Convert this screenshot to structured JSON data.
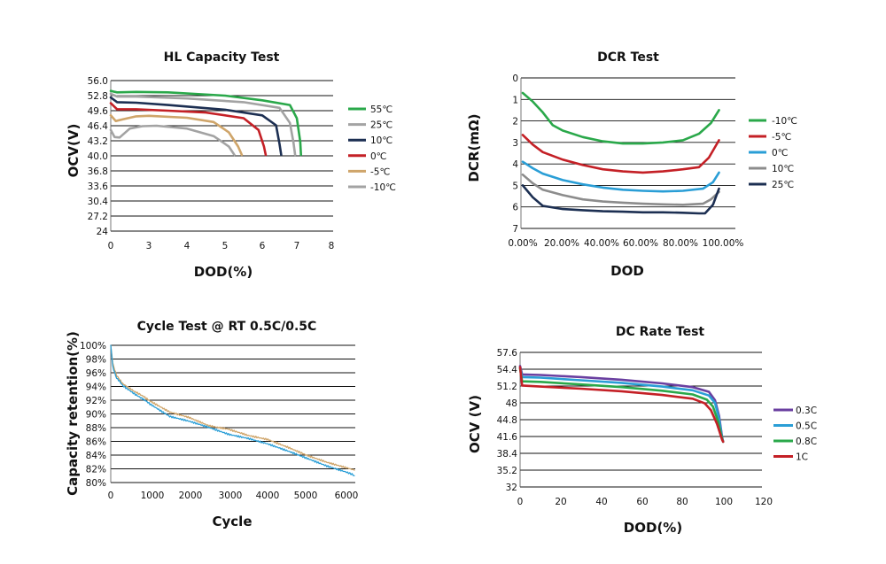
{
  "chart_data": [
    {
      "id": "hl",
      "type": "line",
      "title": "HL Capacity Test",
      "xlabel": "DOD(%)",
      "ylabel": "OCV(V)",
      "xticks": [
        "0",
        "3",
        "4",
        "5",
        "6",
        "7",
        "8"
      ],
      "yticks": [
        "56.0",
        "52.8",
        "49.6",
        "46.4",
        "43.2",
        "40.0",
        "36.8",
        "33.6",
        "30.4",
        "27.2",
        "24"
      ],
      "legend_position": "right",
      "grid": "horizontal",
      "series": [
        {
          "name": "55℃",
          "color": "#2aa84a",
          "points": [
            [
              0,
              53.8
            ],
            [
              0.5,
              53.5
            ],
            [
              2,
              53.6
            ],
            [
              3.5,
              53.5
            ],
            [
              5,
              52.8
            ],
            [
              6,
              51.8
            ],
            [
              6.8,
              50.8
            ],
            [
              7.0,
              48.0
            ],
            [
              7.1,
              43.0
            ],
            [
              7.12,
              40.2
            ]
          ]
        },
        {
          "name": "25℃",
          "color": "#a3a3a3",
          "points": [
            [
              0,
              53.2
            ],
            [
              0.5,
              52.6
            ],
            [
              2,
              52.6
            ],
            [
              4,
              52.2
            ],
            [
              5.5,
              51.4
            ],
            [
              6.5,
              50.2
            ],
            [
              6.8,
              47.0
            ],
            [
              6.9,
              43.0
            ],
            [
              6.95,
              40.2
            ]
          ]
        },
        {
          "name": "10℃",
          "color": "#1c2f52",
          "points": [
            [
              0,
              52.4
            ],
            [
              0.5,
              51.4
            ],
            [
              2,
              51.3
            ],
            [
              3.5,
              50.8
            ],
            [
              5,
              49.8
            ],
            [
              6,
              48.6
            ],
            [
              6.4,
              46.5
            ],
            [
              6.5,
              42.5
            ],
            [
              6.55,
              40.2
            ]
          ]
        },
        {
          "name": "0℃",
          "color": "#c42026",
          "points": [
            [
              0,
              51.2
            ],
            [
              0.5,
              49.9
            ],
            [
              2,
              49.9
            ],
            [
              3.5,
              49.6
            ],
            [
              4.5,
              49.2
            ],
            [
              5.5,
              48.0
            ],
            [
              5.9,
              45.5
            ],
            [
              6.05,
              42.0
            ],
            [
              6.1,
              40.2
            ]
          ]
        },
        {
          "name": "-5℃",
          "color": "#cfa56a",
          "points": [
            [
              0,
              48.6
            ],
            [
              0.4,
              47.4
            ],
            [
              1,
              47.8
            ],
            [
              2,
              48.4
            ],
            [
              3,
              48.5
            ],
            [
              4,
              48.1
            ],
            [
              4.7,
              47.2
            ],
            [
              5.1,
              45.0
            ],
            [
              5.35,
              42.0
            ],
            [
              5.45,
              40.2
            ]
          ]
        },
        {
          "name": "-10℃",
          "color": "#a3a3a3",
          "points": [
            [
              0,
              45.5
            ],
            [
              0.3,
              44.0
            ],
            [
              0.7,
              43.9
            ],
            [
              1.5,
              45.8
            ],
            [
              2.5,
              46.3
            ],
            [
              3.2,
              46.4
            ],
            [
              4.0,
              45.8
            ],
            [
              4.7,
              44.2
            ],
            [
              5.1,
              42.0
            ],
            [
              5.25,
              40.2
            ]
          ]
        }
      ]
    },
    {
      "id": "dcr",
      "type": "line",
      "title": "DCR Test",
      "xlabel": "DOD",
      "ylabel": "DCR(mΩ)",
      "xticks": [
        "0.00%",
        "20.00%",
        "40.00%",
        "60.00%",
        "80.00%",
        "100.00%"
      ],
      "yticks": [
        "0",
        "1",
        "2",
        "3",
        "4",
        "5",
        "6",
        "7"
      ],
      "xlim": [
        0,
        100
      ],
      "ylim": [
        0,
        7
      ],
      "legend_position": "right",
      "grid": "horizontal",
      "series": [
        {
          "name": "-10℃",
          "color": "#2aa84a",
          "points": [
            [
              0,
              6.3
            ],
            [
              5,
              5.9
            ],
            [
              10,
              5.4
            ],
            [
              15,
              4.8
            ],
            [
              20,
              4.55
            ],
            [
              30,
              4.25
            ],
            [
              40,
              4.05
            ],
            [
              50,
              3.95
            ],
            [
              60,
              3.95
            ],
            [
              70,
              4.0
            ],
            [
              80,
              4.1
            ],
            [
              88,
              4.4
            ],
            [
              94,
              4.9
            ],
            [
              98,
              5.5
            ]
          ]
        },
        {
          "name": "-5℃",
          "color": "#c42026",
          "points": [
            [
              0,
              4.35
            ],
            [
              5,
              3.9
            ],
            [
              10,
              3.55
            ],
            [
              20,
              3.2
            ],
            [
              30,
              2.95
            ],
            [
              40,
              2.75
            ],
            [
              50,
              2.65
            ],
            [
              60,
              2.6
            ],
            [
              70,
              2.65
            ],
            [
              80,
              2.75
            ],
            [
              88,
              2.85
            ],
            [
              93,
              3.3
            ],
            [
              98,
              4.1
            ]
          ]
        },
        {
          "name": "0℃",
          "color": "#2a9ed6",
          "points": [
            [
              0,
              3.1
            ],
            [
              5,
              2.8
            ],
            [
              10,
              2.55
            ],
            [
              20,
              2.25
            ],
            [
              30,
              2.05
            ],
            [
              40,
              1.9
            ],
            [
              50,
              1.8
            ],
            [
              60,
              1.75
            ],
            [
              70,
              1.72
            ],
            [
              80,
              1.75
            ],
            [
              90,
              1.85
            ],
            [
              95,
              2.15
            ],
            [
              98,
              2.6
            ]
          ]
        },
        {
          "name": "10℃",
          "color": "#8c8c8c",
          "points": [
            [
              0,
              2.5
            ],
            [
              5,
              2.1
            ],
            [
              10,
              1.8
            ],
            [
              20,
              1.55
            ],
            [
              30,
              1.35
            ],
            [
              40,
              1.25
            ],
            [
              50,
              1.2
            ],
            [
              60,
              1.15
            ],
            [
              70,
              1.12
            ],
            [
              80,
              1.1
            ],
            [
              90,
              1.15
            ],
            [
              94,
              1.35
            ],
            [
              98,
              1.7
            ]
          ]
        },
        {
          "name": "25℃",
          "color": "#1c2f52",
          "points": [
            [
              0,
              2.0
            ],
            [
              5,
              1.45
            ],
            [
              10,
              1.05
            ],
            [
              20,
              0.9
            ],
            [
              30,
              0.85
            ],
            [
              40,
              0.8
            ],
            [
              50,
              0.78
            ],
            [
              60,
              0.75
            ],
            [
              70,
              0.75
            ],
            [
              80,
              0.73
            ],
            [
              88,
              0.7
            ],
            [
              91,
              0.7
            ],
            [
              95,
              1.1
            ],
            [
              98,
              1.85
            ]
          ]
        }
      ]
    },
    {
      "id": "cycle",
      "type": "line",
      "title": "Cycle Test @ RT 0.5C/0.5C",
      "xlabel": "Cycle",
      "ylabel": "Capacity retention(%)",
      "xticks": [
        "0",
        "1000",
        "2000",
        "3000",
        "4000",
        "5000",
        "6000"
      ],
      "yticks": [
        "100%",
        "98%",
        "96%",
        "94%",
        "92%",
        "90%",
        "88%",
        "86%",
        "84%",
        "82%",
        "80%"
      ],
      "xlim": [
        0,
        6200
      ],
      "ylim": [
        80,
        100
      ],
      "grid": "horizontal",
      "series": [
        {
          "color": "#cfa56a",
          "points": [
            [
              0,
              100
            ],
            [
              50,
              97.5
            ],
            [
              150,
              95.5
            ],
            [
              300,
              94.5
            ],
            [
              600,
              93.3
            ],
            [
              1000,
              91.9
            ],
            [
              1500,
              90.3
            ],
            [
              2000,
              89.5
            ],
            [
              2500,
              88.3
            ],
            [
              3000,
              87.8
            ],
            [
              3500,
              86.9
            ],
            [
              4000,
              86.3
            ],
            [
              4500,
              85.2
            ],
            [
              5000,
              84.0
            ],
            [
              5500,
              83.0
            ],
            [
              6000,
              82.2
            ],
            [
              6200,
              81.8
            ]
          ]
        },
        {
          "color": "#2a9ed6",
          "points": [
            [
              0,
              100
            ],
            [
              50,
              97.0
            ],
            [
              150,
              95.2
            ],
            [
              300,
              94.2
            ],
            [
              600,
              93.0
            ],
            [
              1000,
              91.4
            ],
            [
              1500,
              89.6
            ],
            [
              2000,
              88.9
            ],
            [
              2500,
              88.0
            ],
            [
              3000,
              87.0
            ],
            [
              3500,
              86.4
            ],
            [
              4000,
              85.6
            ],
            [
              4500,
              84.6
            ],
            [
              5000,
              83.5
            ],
            [
              5500,
              82.4
            ],
            [
              6000,
              81.5
            ],
            [
              6200,
              81.0
            ]
          ]
        }
      ]
    },
    {
      "id": "rate",
      "type": "line",
      "title": "DC Rate Test",
      "xlabel": "DOD(%)",
      "ylabel": "OCV (V)",
      "xticks": [
        "0",
        "20",
        "40",
        "60",
        "80",
        "100",
        "120"
      ],
      "yticks": [
        "57.6",
        "54.4",
        "51.2",
        "48",
        "44.8",
        "41.6",
        "38.4",
        "35.2",
        "32"
      ],
      "xlim": [
        0,
        120
      ],
      "ylim": [
        32,
        57.6
      ],
      "legend_position": "right",
      "grid": "horizontal",
      "series": [
        {
          "name": "0.3C",
          "color": "#6a3fa0",
          "points": [
            [
              0,
              55.0
            ],
            [
              1,
              53.4
            ],
            [
              10,
              53.3
            ],
            [
              30,
              52.9
            ],
            [
              50,
              52.4
            ],
            [
              70,
              51.7
            ],
            [
              85,
              51.0
            ],
            [
              93,
              50.1
            ],
            [
              96,
              48.5
            ],
            [
              98,
              45.5
            ],
            [
              99.5,
              41.5
            ],
            [
              100,
              40.6
            ]
          ]
        },
        {
          "name": "0.5C",
          "color": "#2a9ed6",
          "points": [
            [
              0,
              54.7
            ],
            [
              1,
              52.9
            ],
            [
              10,
              52.8
            ],
            [
              30,
              52.3
            ],
            [
              50,
              51.8
            ],
            [
              70,
              51.1
            ],
            [
              85,
              50.4
            ],
            [
              93,
              49.4
            ],
            [
              96,
              48.0
            ],
            [
              98,
              45.0
            ],
            [
              99.5,
              41.3
            ],
            [
              100,
              40.6
            ]
          ]
        },
        {
          "name": "0.8C",
          "color": "#2aa84a",
          "points": [
            [
              0,
              54.5
            ],
            [
              1,
              52.1
            ],
            [
              10,
              52.0
            ],
            [
              30,
              51.5
            ],
            [
              50,
              51.0
            ],
            [
              70,
              50.3
            ],
            [
              85,
              49.6
            ],
            [
              92,
              48.6
            ],
            [
              95,
              47.3
            ],
            [
              97.5,
              44.5
            ],
            [
              99.5,
              41.2
            ],
            [
              100,
              40.6
            ]
          ]
        },
        {
          "name": "1C",
          "color": "#c42026",
          "points": [
            [
              0,
              54.8
            ],
            [
              1,
              51.3
            ],
            [
              10,
              51.1
            ],
            [
              30,
              50.7
            ],
            [
              50,
              50.2
            ],
            [
              70,
              49.5
            ],
            [
              85,
              48.8
            ],
            [
              91,
              47.9
            ],
            [
              94,
              46.6
            ],
            [
              97,
              44.0
            ],
            [
              99.5,
              41.0
            ],
            [
              100,
              40.6
            ]
          ]
        }
      ]
    }
  ]
}
